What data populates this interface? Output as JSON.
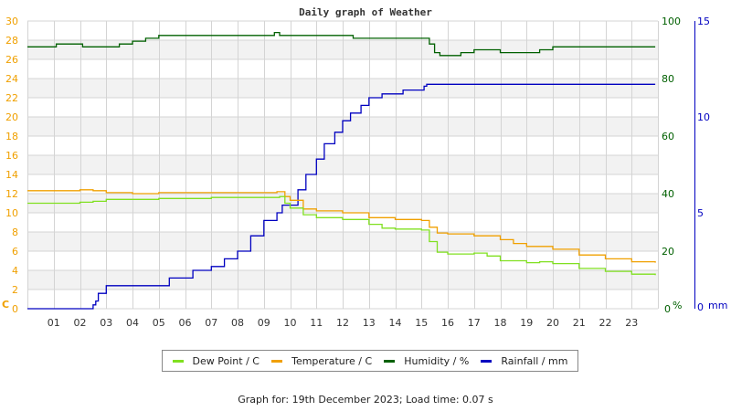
{
  "chart_data": {
    "type": "line",
    "title": "Daily graph of Weather",
    "xlabel": "",
    "x_ticks": [
      "01",
      "02",
      "03",
      "04",
      "05",
      "06",
      "07",
      "08",
      "09",
      "10",
      "11",
      "12",
      "13",
      "14",
      "15",
      "16",
      "17",
      "18",
      "19",
      "20",
      "21",
      "22",
      "23"
    ],
    "xlim": [
      0,
      24
    ],
    "axes": {
      "left": {
        "unit": "C",
        "ylim": [
          0,
          30
        ],
        "ticks": [
          0,
          2,
          4,
          6,
          8,
          10,
          12,
          14,
          16,
          18,
          20,
          22,
          24,
          26,
          28,
          30
        ],
        "color": "#f0a000"
      },
      "right1": {
        "unit": "%",
        "ylim": [
          0,
          100
        ],
        "ticks": [
          0,
          20,
          40,
          60,
          80,
          100
        ],
        "color": "#006000"
      },
      "right2": {
        "unit": "mm",
        "ylim": [
          0,
          15
        ],
        "ticks": [
          0,
          5,
          10,
          15
        ],
        "color": "#0000c0"
      }
    },
    "grid": true,
    "legend_position": "bottom",
    "series": [
      {
        "name": "Dew Point / C",
        "axis": "left",
        "color": "#80e020",
        "points": [
          [
            0,
            11.0
          ],
          [
            1,
            11.0
          ],
          [
            2,
            11.1
          ],
          [
            2.5,
            11.2
          ],
          [
            3,
            11.4
          ],
          [
            4,
            11.4
          ],
          [
            5,
            11.5
          ],
          [
            6,
            11.5
          ],
          [
            7,
            11.6
          ],
          [
            8,
            11.6
          ],
          [
            9,
            11.6
          ],
          [
            9.6,
            11.7
          ],
          [
            9.8,
            11.0
          ],
          [
            10,
            10.5
          ],
          [
            10.5,
            9.8
          ],
          [
            11,
            9.5
          ],
          [
            12,
            9.3
          ],
          [
            13,
            8.8
          ],
          [
            13.5,
            8.4
          ],
          [
            14,
            8.3
          ],
          [
            15,
            8.2
          ],
          [
            15.3,
            7.0
          ],
          [
            15.6,
            5.9
          ],
          [
            16,
            5.7
          ],
          [
            17,
            5.8
          ],
          [
            17.5,
            5.5
          ],
          [
            18,
            5.0
          ],
          [
            19,
            4.8
          ],
          [
            19.5,
            4.9
          ],
          [
            20,
            4.7
          ],
          [
            21,
            4.2
          ],
          [
            22,
            3.9
          ],
          [
            23,
            3.6
          ],
          [
            23.9,
            3.5
          ]
        ]
      },
      {
        "name": "Temperature / C",
        "axis": "left",
        "color": "#f0a000",
        "points": [
          [
            0,
            12.3
          ],
          [
            1,
            12.3
          ],
          [
            1.7,
            12.3
          ],
          [
            2,
            12.4
          ],
          [
            2.5,
            12.3
          ],
          [
            3,
            12.1
          ],
          [
            4,
            12.0
          ],
          [
            5,
            12.1
          ],
          [
            6,
            12.1
          ],
          [
            7,
            12.1
          ],
          [
            8,
            12.1
          ],
          [
            9,
            12.1
          ],
          [
            9.5,
            12.2
          ],
          [
            9.8,
            11.7
          ],
          [
            10,
            11.3
          ],
          [
            10.5,
            10.4
          ],
          [
            11,
            10.2
          ],
          [
            12,
            10.0
          ],
          [
            13,
            9.5
          ],
          [
            14,
            9.3
          ],
          [
            15,
            9.2
          ],
          [
            15.3,
            8.5
          ],
          [
            15.6,
            7.9
          ],
          [
            16,
            7.8
          ],
          [
            17,
            7.6
          ],
          [
            18,
            7.2
          ],
          [
            18.5,
            6.8
          ],
          [
            19,
            6.5
          ],
          [
            20,
            6.2
          ],
          [
            21,
            5.6
          ],
          [
            22,
            5.2
          ],
          [
            23,
            4.9
          ],
          [
            23.9,
            4.8
          ]
        ]
      },
      {
        "name": "Humidity / %",
        "axis": "right1",
        "color": "#006000",
        "points": [
          [
            0,
            91
          ],
          [
            1,
            91
          ],
          [
            1.1,
            92
          ],
          [
            2,
            92
          ],
          [
            2.1,
            91
          ],
          [
            3,
            91
          ],
          [
            3.5,
            92
          ],
          [
            4,
            93
          ],
          [
            4.5,
            94
          ],
          [
            5,
            95
          ],
          [
            6,
            95
          ],
          [
            7,
            95
          ],
          [
            8,
            95
          ],
          [
            9,
            95
          ],
          [
            9.4,
            96
          ],
          [
            9.6,
            95
          ],
          [
            10,
            95
          ],
          [
            11,
            95
          ],
          [
            12,
            95
          ],
          [
            12.4,
            94
          ],
          [
            13,
            94
          ],
          [
            14,
            94
          ],
          [
            15,
            94
          ],
          [
            15.3,
            92
          ],
          [
            15.5,
            89
          ],
          [
            15.7,
            88
          ],
          [
            16,
            88
          ],
          [
            16.5,
            89
          ],
          [
            17,
            90
          ],
          [
            18,
            89
          ],
          [
            19,
            89
          ],
          [
            19.5,
            90
          ],
          [
            20,
            91
          ],
          [
            21,
            91
          ],
          [
            22,
            91
          ],
          [
            23,
            91
          ],
          [
            23.9,
            91
          ]
        ]
      },
      {
        "name": "Rainfall / mm",
        "axis": "right2",
        "color": "#0000c0",
        "points": [
          [
            0,
            0
          ],
          [
            2.4,
            0
          ],
          [
            2.5,
            0.2
          ],
          [
            2.6,
            0.4
          ],
          [
            2.7,
            0.8
          ],
          [
            2.9,
            0.8
          ],
          [
            3.0,
            1.2
          ],
          [
            5.3,
            1.2
          ],
          [
            5.4,
            1.6
          ],
          [
            6.0,
            1.6
          ],
          [
            6.3,
            2.0
          ],
          [
            7.0,
            2.2
          ],
          [
            7.5,
            2.6
          ],
          [
            8.0,
            3.0
          ],
          [
            8.5,
            3.8
          ],
          [
            9.0,
            4.6
          ],
          [
            9.5,
            5.0
          ],
          [
            9.7,
            5.4
          ],
          [
            10.0,
            5.4
          ],
          [
            10.3,
            6.2
          ],
          [
            10.6,
            7.0
          ],
          [
            11.0,
            7.8
          ],
          [
            11.3,
            8.6
          ],
          [
            11.7,
            9.2
          ],
          [
            12.0,
            9.8
          ],
          [
            12.3,
            10.2
          ],
          [
            12.7,
            10.6
          ],
          [
            13.0,
            11.0
          ],
          [
            13.5,
            11.2
          ],
          [
            14.3,
            11.4
          ],
          [
            15.1,
            11.6
          ],
          [
            15.2,
            11.7
          ],
          [
            23.9,
            11.7
          ]
        ]
      }
    ]
  },
  "legend": {
    "items": [
      {
        "label": "Dew Point / C",
        "color": "#80e020"
      },
      {
        "label": "Temperature / C",
        "color": "#f0a000"
      },
      {
        "label": "Humidity / %",
        "color": "#006000"
      },
      {
        "label": "Rainfall / mm",
        "color": "#0000c0"
      }
    ]
  },
  "footer": {
    "text": "Graph for: 19th December 2023; Load time: 0.07 s"
  }
}
